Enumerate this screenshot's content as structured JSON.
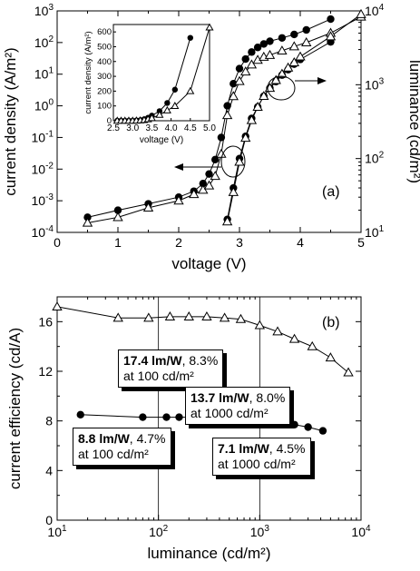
{
  "chart_data": [
    {
      "type": "line",
      "panel_label": "(a)",
      "xlabel": "voltage (V)",
      "ylabel": "current density (A/m²)",
      "ylabel_right": "luminance (cd/m²)",
      "xlim": [
        0,
        5
      ],
      "ylim_log": [
        -4,
        3
      ],
      "ylim_right_log": [
        1,
        4
      ],
      "x_ticks": [
        "0",
        "1",
        "2",
        "3",
        "4",
        "5"
      ],
      "y_exponents": [
        -4,
        -3,
        -2,
        -1,
        0,
        1,
        2,
        3
      ],
      "y_right_exponents": [
        1,
        2,
        3,
        4
      ],
      "y_scale": "log",
      "series": [
        {
          "marker": "filled-circle",
          "quantity": "current density",
          "x": [
            0.5,
            1.0,
            1.5,
            2.0,
            2.25,
            2.4,
            2.5,
            2.6,
            2.7,
            2.8,
            2.9,
            3.0,
            3.1,
            3.2,
            3.3,
            3.4,
            3.5,
            3.7,
            3.9,
            4.1,
            4.5
          ],
          "y": [
            0.0003,
            0.0005,
            0.0008,
            0.0013,
            0.002,
            0.0035,
            0.007,
            0.02,
            0.1,
            1,
            5,
            15,
            30,
            50,
            70,
            90,
            110,
            140,
            180,
            250,
            550
          ]
        },
        {
          "marker": "open-triangle",
          "quantity": "current density",
          "x": [
            0.5,
            1.0,
            1.5,
            2.0,
            2.25,
            2.4,
            2.5,
            2.6,
            2.7,
            2.8,
            2.9,
            3.0,
            3.1,
            3.2,
            3.3,
            3.4,
            3.5,
            3.7,
            3.9,
            4.1,
            4.5,
            5.0
          ],
          "y": [
            0.0002,
            0.0003,
            0.0006,
            0.001,
            0.0016,
            0.0022,
            0.003,
            0.006,
            0.03,
            0.5,
            2,
            6,
            12,
            20,
            28,
            35,
            40,
            55,
            75,
            100,
            200,
            650
          ]
        },
        {
          "marker": "filled-circle",
          "quantity": "luminance",
          "x": [
            2.8,
            2.9,
            3.0,
            3.1,
            3.2,
            3.3,
            3.4,
            3.5,
            3.6,
            3.7,
            3.8,
            3.9,
            4.0,
            4.5
          ],
          "y": [
            15,
            40,
            100,
            200,
            350,
            500,
            700,
            900,
            1100,
            1350,
            1600,
            1900,
            2200,
            3800
          ]
        },
        {
          "marker": "open-triangle",
          "quantity": "luminance",
          "x": [
            2.8,
            2.9,
            3.0,
            3.1,
            3.2,
            3.3,
            3.4,
            3.5,
            3.6,
            3.7,
            3.8,
            3.9,
            4.0,
            4.5,
            5.0
          ],
          "y": [
            14,
            35,
            90,
            190,
            330,
            500,
            700,
            900,
            1150,
            1400,
            1700,
            2000,
            2400,
            4500,
            9000
          ]
        }
      ],
      "inset": {
        "type": "line",
        "xlabel": "voltage (V)",
        "ylabel": "current density (A/m²)",
        "xlim": [
          2.5,
          5.0
        ],
        "ylim": [
          0,
          650
        ],
        "x_ticks": [
          "2.5",
          "3.0",
          "3.5",
          "4.0",
          "4.5",
          "5.0"
        ],
        "y_ticks": [
          "0",
          "100",
          "200",
          "300",
          "400",
          "500",
          "600"
        ],
        "series": [
          {
            "marker": "filled-circle",
            "x": [
              2.6,
              2.7,
              2.8,
              2.9,
              3.0,
              3.1,
              3.2,
              3.3,
              3.4,
              3.5,
              3.7,
              3.9,
              4.1,
              4.5
            ],
            "y": [
              0,
              0,
              0,
              0,
              0,
              2,
              4,
              10,
              20,
              35,
              65,
              120,
              210,
              560
            ]
          },
          {
            "marker": "open-triangle",
            "x": [
              2.6,
              2.7,
              2.8,
              2.9,
              3.0,
              3.1,
              3.2,
              3.3,
              3.4,
              3.5,
              3.7,
              3.9,
              4.1,
              4.5,
              5.0
            ],
            "y": [
              0,
              0,
              0,
              0,
              0,
              1,
              2,
              5,
              10,
              18,
              40,
              70,
              100,
              200,
              630
            ]
          }
        ]
      }
    },
    {
      "type": "line",
      "panel_label": "(b)",
      "xlabel": "luminance (cd/m²)",
      "ylabel": "current efficiency (cd/A)",
      "x_scale": "log",
      "xlim_log": [
        1,
        4
      ],
      "ylim": [
        0,
        18
      ],
      "x_exponents": [
        1,
        2,
        3,
        4
      ],
      "y_ticks": [
        "0",
        "4",
        "8",
        "12",
        "16"
      ],
      "grid": "vertical at decades",
      "series": [
        {
          "marker": "open-triangle",
          "x": [
            10,
            40,
            80,
            130,
            200,
            300,
            450,
            650,
            1000,
            1500,
            2200,
            3300,
            5000,
            7500
          ],
          "y": [
            17.2,
            16.3,
            16.3,
            16.4,
            16.4,
            16.4,
            16.3,
            16.2,
            15.7,
            15.2,
            14.6,
            14.0,
            13.1,
            11.9
          ]
        },
        {
          "marker": "filled-circle",
          "x": [
            17,
            70,
            120,
            160,
            220,
            300,
            400,
            500,
            650,
            1000,
            1500,
            2200,
            3000,
            4200
          ],
          "y": [
            8.5,
            8.3,
            8.3,
            8.3,
            8.3,
            8.2,
            8.2,
            8.2,
            8.1,
            8.1,
            7.9,
            7.7,
            7.5,
            7.2
          ]
        }
      ],
      "annotations": [
        {
          "bold": "17.4 lm/W",
          "rest": ", 8.3%",
          "line2": "at 100 cd/m²"
        },
        {
          "bold": "13.7 lm/W",
          "rest": ", 8.0%",
          "line2": "at 1000 cd/m²"
        },
        {
          "bold": "8.8 lm/W",
          "rest": ", 4.7%",
          "line2": "at 100 cd/m²"
        },
        {
          "bold": "7.1 lm/W",
          "rest": ", 4.5%",
          "line2": "at 1000 cd/m²"
        }
      ]
    }
  ]
}
